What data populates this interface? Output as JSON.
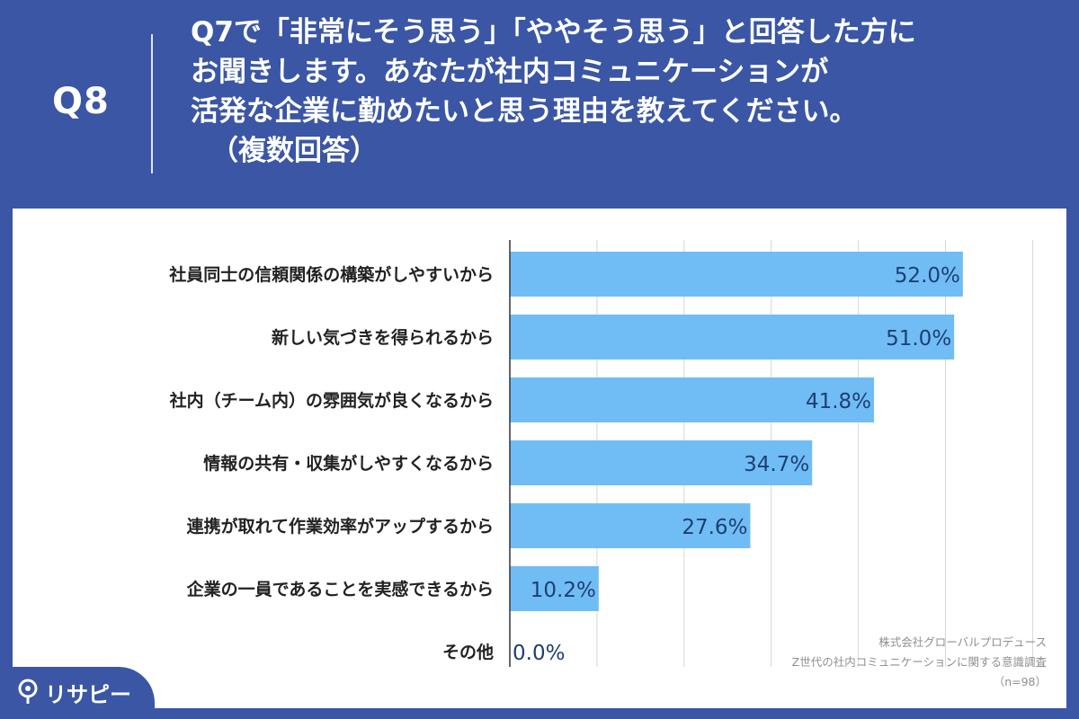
{
  "header": {
    "question_label": "Q8",
    "question_lines": [
      "Q7で「非常にそう思う」「ややそう思う」と回答した方に",
      "お聞きします。あなたが社内コミュニケーションが",
      "活発な企業に勤めたいと思う理由を教えてください。"
    ],
    "question_note": "（複数回答）"
  },
  "chart_data": {
    "type": "bar",
    "orientation": "horizontal",
    "categories": [
      "社員同士の信頼関係の構築がしやすいから",
      "新しい気づきを得られるから",
      "社内（チーム内）の雰囲気が良くなるから",
      "情報の共有・収集がしやすくなるから",
      "連携が取れて作業効率がアップするから",
      "企業の一員であることを実感できるから",
      "その他"
    ],
    "values": [
      52.0,
      51.0,
      41.8,
      34.7,
      27.6,
      10.2,
      0.0
    ],
    "value_labels": [
      "52.0%",
      "51.0%",
      "41.8%",
      "34.7%",
      "27.6%",
      "10.2%",
      "0.0%"
    ],
    "xlim": [
      0,
      60
    ],
    "grid": true,
    "bar_color": "#70bdf5"
  },
  "source": {
    "company": "株式会社グローバルプロデュース",
    "survey": "Z世代の社内コミュニケーションに関する意識調査",
    "sample": "（n=98）"
  },
  "branding": {
    "logo_icon": "pin-icon",
    "logo_text": "リサピー"
  }
}
